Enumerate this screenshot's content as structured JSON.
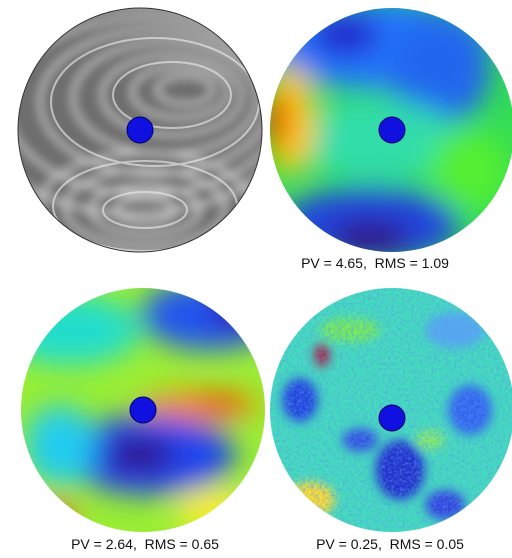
{
  "captions": [
    "PV = 4.65,  RMS = 1.09",
    "PV = 2.64,  RMS = 0.65",
    "PV = 0.25,  RMS = 0.05"
  ]
}
